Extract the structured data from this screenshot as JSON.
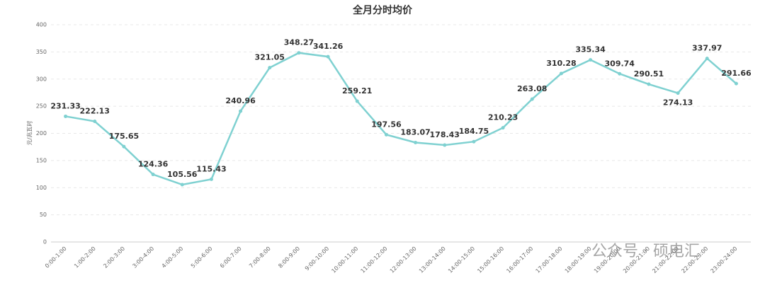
{
  "chart_data": {
    "type": "line",
    "title": "全月分时均价",
    "y_label": "元/兆瓦时",
    "categories": [
      "0:00-1:00",
      "1:00-2:00",
      "2:00-3:00",
      "3:00-4:00",
      "4:00-5:00",
      "5:00-6:00",
      "6:00-7:00",
      "7:00-8:00",
      "8:00-9:00",
      "9:00-10:00",
      "10:00-11:00",
      "11:00-12:00",
      "12:00-13:00",
      "13:00-14:00",
      "14:00-15:00",
      "15:00-16:00",
      "16:00-17:00",
      "17:00-18:00",
      "18:00-19:00",
      "19:00-20:00",
      "20:00-21:00",
      "21:00-22:00",
      "22:00-23:00",
      "23:00-24:00"
    ],
    "values": [
      231.33,
      222.13,
      175.65,
      124.36,
      105.56,
      115.43,
      240.96,
      321.05,
      348.27,
      341.26,
      259.21,
      197.56,
      183.07,
      178.43,
      184.75,
      210.23,
      263.08,
      310.28,
      335.34,
      309.74,
      290.51,
      274.13,
      337.97,
      291.66
    ],
    "color": "#7fd1d1",
    "ylim": [
      0,
      400
    ],
    "yticks": [
      0,
      50,
      100,
      150,
      200,
      250,
      300,
      350,
      400
    ],
    "grid": true,
    "watermark": "公众号 · 硕电汇"
  }
}
